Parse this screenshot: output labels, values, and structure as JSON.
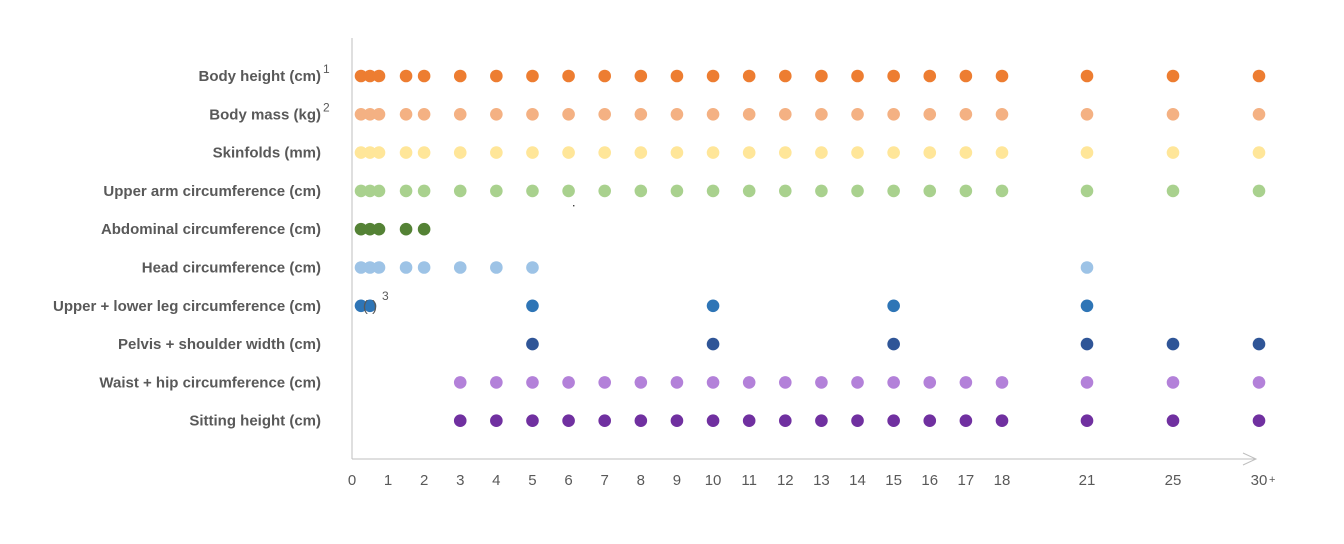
{
  "chart_data": {
    "type": "scatter",
    "x_ticks": [
      {
        "value": 0,
        "label": "0"
      },
      {
        "value": 1,
        "label": "1"
      },
      {
        "value": 2,
        "label": "2"
      },
      {
        "value": 3,
        "label": "3"
      },
      {
        "value": 4,
        "label": "4"
      },
      {
        "value": 5,
        "label": "5"
      },
      {
        "value": 6,
        "label": "6"
      },
      {
        "value": 7,
        "label": "7"
      },
      {
        "value": 8,
        "label": "8"
      },
      {
        "value": 9,
        "label": "9"
      },
      {
        "value": 10,
        "label": "10"
      },
      {
        "value": 11,
        "label": "11"
      },
      {
        "value": 12,
        "label": "12"
      },
      {
        "value": 13,
        "label": "13"
      },
      {
        "value": 14,
        "label": "14"
      },
      {
        "value": 15,
        "label": "15"
      },
      {
        "value": 16,
        "label": "16"
      },
      {
        "value": 17,
        "label": "17"
      },
      {
        "value": 18,
        "label": "18"
      },
      {
        "value": 21,
        "label": "21"
      },
      {
        "value": 25,
        "label": "25"
      },
      {
        "value": 30,
        "label": "30",
        "suffix": "+"
      }
    ],
    "rows": [
      {
        "label": "Body height (cm)",
        "footnote": "1",
        "color": "#ED7D31",
        "x": [
          0.25,
          0.5,
          0.75,
          1.5,
          2,
          3,
          4,
          5,
          6,
          7,
          8,
          9,
          10,
          11,
          12,
          13,
          14,
          15,
          16,
          17,
          18,
          21,
          25,
          30
        ]
      },
      {
        "label": "Body mass (kg)",
        "footnote": "2",
        "color": "#F4B183",
        "x": [
          0.25,
          0.5,
          0.75,
          1.5,
          2,
          3,
          4,
          5,
          6,
          7,
          8,
          9,
          10,
          11,
          12,
          13,
          14,
          15,
          16,
          17,
          18,
          21,
          25,
          30
        ]
      },
      {
        "label": "Skinfolds (mm)",
        "footnote": "",
        "color": "#FFE699",
        "x": [
          0.25,
          0.5,
          0.75,
          1.5,
          2,
          3,
          4,
          5,
          6,
          7,
          8,
          9,
          10,
          11,
          12,
          13,
          14,
          15,
          16,
          17,
          18,
          21,
          25,
          30
        ]
      },
      {
        "label": "Upper arm circumference (cm)",
        "footnote": "",
        "color": "#A9D18E",
        "x": [
          0.25,
          0.5,
          0.75,
          1.5,
          2,
          3,
          4,
          5,
          6,
          7,
          8,
          9,
          10,
          11,
          12,
          13,
          14,
          15,
          16,
          17,
          18,
          21,
          25,
          30
        ]
      },
      {
        "label": "Abdominal circumference (cm)",
        "footnote": "",
        "color": "#548235",
        "x": [
          0.25,
          0.5,
          0.75,
          1.5,
          2
        ]
      },
      {
        "label": "Head circumference (cm)",
        "footnote": "",
        "color": "#9DC3E6",
        "x": [
          0.25,
          0.5,
          0.75,
          1.5,
          2,
          3,
          4,
          5,
          21
        ]
      },
      {
        "label": "Upper + lower leg circumference (cm)",
        "footnote": "",
        "color": "#2E75B6",
        "x": [
          0.25,
          5,
          10,
          15,
          21
        ],
        "bracketed_point": {
          "x": 0.5,
          "text": "( )",
          "footnote": "3"
        }
      },
      {
        "label": "Pelvis + shoulder width (cm)",
        "footnote": "",
        "color": "#2F5597",
        "x": [
          5,
          10,
          15,
          21,
          25,
          30
        ]
      },
      {
        "label": "Waist + hip circumference (cm)",
        "footnote": "",
        "color": "#B381D9",
        "x": [
          3,
          4,
          5,
          6,
          7,
          8,
          9,
          10,
          11,
          12,
          13,
          14,
          15,
          16,
          17,
          18,
          21,
          25,
          30
        ]
      },
      {
        "label": "Sitting height (cm)",
        "footnote": "",
        "color": "#7030A0",
        "x": [
          3,
          4,
          5,
          6,
          7,
          8,
          9,
          10,
          11,
          12,
          13,
          14,
          15,
          16,
          17,
          18,
          21,
          25,
          30
        ]
      }
    ],
    "axis_color": "#BFBFBF",
    "grid": false
  }
}
